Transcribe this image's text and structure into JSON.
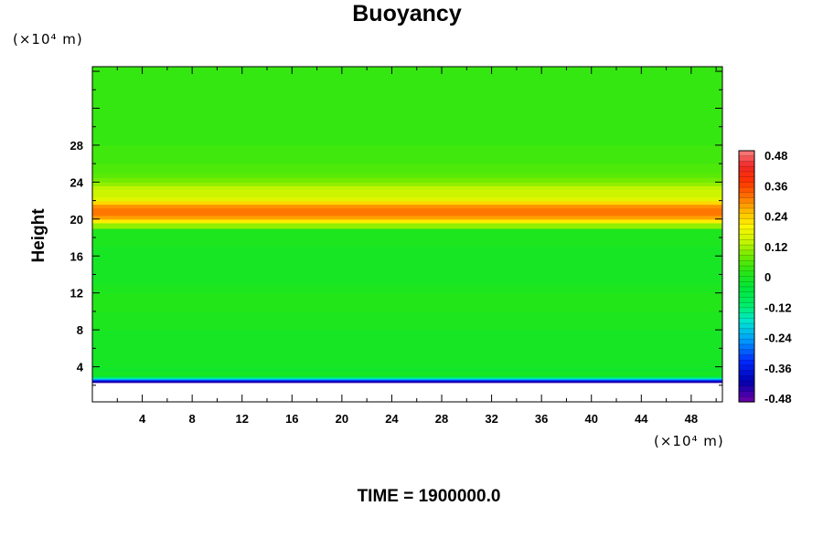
{
  "chart_data": {
    "type": "heatmap",
    "title": "Buoyancy",
    "xlabel": "",
    "ylabel": "Height",
    "x_unit": "(×10⁴ m)",
    "y_unit": "(×10⁴ m)",
    "x_ticks": [
      "4",
      "8",
      "12",
      "16",
      "20",
      "24",
      "28",
      "32",
      "36",
      "40",
      "44",
      "48"
    ],
    "y_ticks": [
      "4",
      "8",
      "12",
      "16",
      "20",
      "24",
      "28"
    ],
    "xlim": [
      0,
      50.5
    ],
    "ylim": [
      0.2,
      36.5
    ],
    "colorbar": {
      "labels": [
        "0.48",
        "0.36",
        "0.24",
        "0.12",
        "0",
        "-0.12",
        "-0.24",
        "-0.36",
        "-0.48"
      ],
      "range": [
        -0.48,
        0.48
      ]
    },
    "profile": {
      "height": [
        0.2,
        2.3,
        2.4,
        2.5,
        2.6,
        2.7,
        2.8,
        2.9,
        3.0,
        3.1,
        3.3,
        3.5,
        4.0,
        6.0,
        8.0,
        10.0,
        11.0,
        11.5,
        12.0,
        13.0,
        15.0,
        17.0,
        19.0,
        19.6,
        20.0,
        20.4,
        20.8,
        21.2,
        21.6,
        22.0,
        22.4,
        22.8,
        23.2,
        23.6,
        24.0,
        24.5,
        25.0,
        26.0,
        27.0,
        28.0,
        29.0,
        36.5
      ],
      "buoyancy": [
        null,
        null,
        -0.44,
        -0.4,
        -0.34,
        -0.26,
        -0.18,
        -0.12,
        -0.07,
        -0.03,
        -0.01,
        -0.01,
        -0.02,
        -0.01,
        -0.01,
        0.0,
        0.01,
        0.01,
        0.01,
        0.0,
        -0.01,
        -0.01,
        0.0,
        0.1,
        0.2,
        0.27,
        0.3,
        0.3,
        0.28,
        0.22,
        0.16,
        0.14,
        0.14,
        0.13,
        0.1,
        0.08,
        0.06,
        0.05,
        0.04,
        0.04,
        0.03,
        0.03
      ]
    }
  },
  "footer": {
    "time_label": "TIME = 1900000.0"
  }
}
